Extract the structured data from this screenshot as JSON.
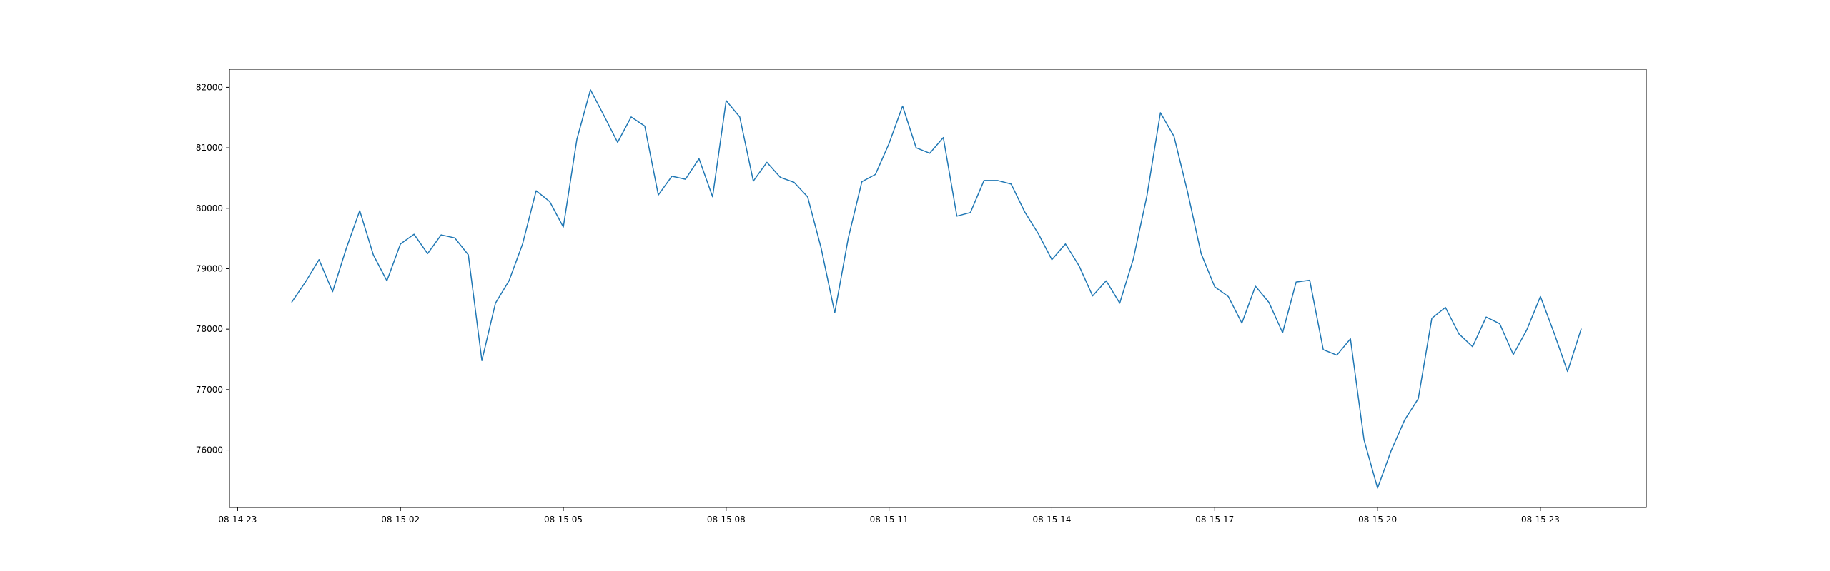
{
  "chart_data": {
    "type": "line",
    "title": "",
    "xlabel": "",
    "ylabel": "",
    "x_tick_labels": [
      "08-14 23",
      "08-15 02",
      "08-15 05",
      "08-15 08",
      "08-15 11",
      "08-15 14",
      "08-15 17",
      "08-15 20",
      "08-15 23"
    ],
    "x_tick_hours": [
      -1,
      2,
      5,
      8,
      11,
      14,
      17,
      20,
      23
    ],
    "xlim_hours": [
      -1.15,
      24.95
    ],
    "y_ticks": [
      76000,
      77000,
      78000,
      79000,
      80000,
      81000,
      82000
    ],
    "ylim": [
      75050,
      82300
    ],
    "grid": false,
    "line_color": "#1f77b4",
    "series": [
      {
        "x_hours": [
          0.0,
          0.25,
          0.5,
          0.75,
          1.0,
          1.25,
          1.5,
          1.75,
          2.0,
          2.25,
          2.5,
          2.75,
          3.0,
          3.25,
          3.5,
          3.75,
          4.0,
          4.25,
          4.5,
          4.75,
          5.0,
          5.25,
          5.5,
          5.75,
          6.0,
          6.25,
          6.5,
          6.75,
          7.0,
          7.25,
          7.5,
          7.75,
          8.0,
          8.25,
          8.5,
          8.75,
          9.0,
          9.25,
          9.5,
          9.75,
          10.0,
          10.25,
          10.5,
          10.75,
          11.0,
          11.25,
          11.5,
          11.75,
          12.0,
          12.25,
          12.5,
          12.75,
          13.0,
          13.25,
          13.5,
          13.75,
          14.0,
          14.25,
          14.5,
          14.75,
          15.0,
          15.25,
          15.5,
          15.75,
          16.0,
          16.25,
          16.5,
          16.75,
          17.0,
          17.25,
          17.5,
          17.75,
          18.0,
          18.25,
          18.5,
          18.75,
          19.0,
          19.25,
          19.5,
          19.75,
          20.0,
          20.25,
          20.5,
          20.75,
          21.0,
          21.25,
          21.5,
          21.75,
          22.0,
          22.25,
          22.5,
          22.75,
          23.0,
          23.25,
          23.5,
          23.75
        ],
        "values": [
          78450,
          78780,
          79150,
          78620,
          79330,
          79960,
          79230,
          78800,
          79410,
          79570,
          79250,
          79560,
          79510,
          79230,
          77480,
          78430,
          78800,
          79410,
          80290,
          80110,
          79690,
          81140,
          81960,
          81530,
          81090,
          81510,
          81360,
          80220,
          80530,
          80480,
          80820,
          80190,
          81780,
          81510,
          80450,
          80760,
          80510,
          80430,
          80190,
          79340,
          78270,
          79510,
          80440,
          80560,
          81070,
          81690,
          81000,
          80910,
          81170,
          79870,
          79930,
          80460,
          80460,
          80400,
          79940,
          79580,
          79150,
          79410,
          79050,
          78550,
          78800,
          78430,
          79160,
          80200,
          81580,
          81190,
          80270,
          79250,
          78700,
          78540,
          78100,
          78710,
          78440,
          77940,
          78780,
          78810,
          77660,
          77570,
          77840,
          76170,
          75370,
          75990,
          76500,
          76850,
          78180,
          78360,
          77920,
          77710,
          78200,
          78090,
          77580,
          77990,
          78540,
          77940,
          77300,
          78000
        ]
      }
    ]
  }
}
